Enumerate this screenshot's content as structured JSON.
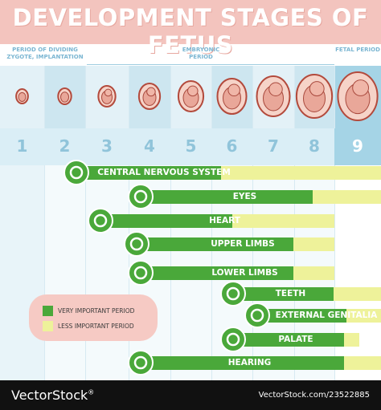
{
  "title": "DEVELOPMENT STAGES OF FETUS",
  "periods": {
    "dividing": "PERIOD OF DIVIDING ZYGOTE, IMPLANTATION",
    "embryonic": "EMBRYONIC PERIOD",
    "fetal": "FETAL PERIOD"
  },
  "stages": [
    "1",
    "2",
    "3",
    "4",
    "5",
    "6",
    "7",
    "8",
    "9"
  ],
  "systems": [
    {
      "label": "CENTRAL NERVOUS SYSTEM",
      "icon": "brain-icon"
    },
    {
      "label": "EYES",
      "icon": "eye-icon"
    },
    {
      "label": "HEART",
      "icon": "heart-icon"
    },
    {
      "label": "UPPER LIMBS",
      "icon": "hand-icon"
    },
    {
      "label": "LOWER LIMBS",
      "icon": "foot-icon"
    },
    {
      "label": "TEETH",
      "icon": "tooth-icon"
    },
    {
      "label": "EXTERNAL GENITALIA",
      "icon": "gender-icon"
    },
    {
      "label": "PALATE",
      "icon": "lips-icon"
    },
    {
      "label": "HEARING",
      "icon": "ear-icon"
    }
  ],
  "legend": {
    "very_important": "VERY IMPORTANT PERIOD",
    "less_important": "LESS IMPORTANT PERIOD"
  },
  "colors": {
    "very_important": "#4aa83a",
    "less_important": "#eef29a",
    "title_bar": "#f3c4be",
    "column_light": "#e3f1f7",
    "column_dark": "#cde6f0",
    "fetal_highlight": "#a5d4e6"
  },
  "footer": {
    "brand": "VectorStock",
    "id_text": "VectorStock.com/23522885"
  }
}
